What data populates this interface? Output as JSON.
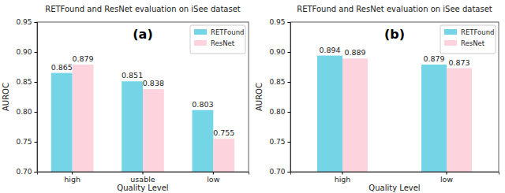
{
  "chart_data": [
    {
      "type": "bar",
      "title": "RETFound and ResNet evaluation on iSee dataset",
      "annotation": "(a)",
      "x_label": "Quality Level",
      "y_label": "AUROC",
      "categories": [
        "high",
        "usable",
        "low"
      ],
      "series": [
        {
          "name": "RETFound",
          "color": "#74d5e6",
          "values": [
            0.865,
            0.851,
            0.803
          ]
        },
        {
          "name": "ResNet",
          "color": "#fdd3dd",
          "values": [
            0.879,
            0.838,
            0.755
          ]
        }
      ],
      "ylim": [
        0.7,
        0.95
      ],
      "yticks": [
        {
          "value": 0.7,
          "label": "0.70"
        },
        {
          "value": 0.75,
          "label": "0.75"
        },
        {
          "value": 0.8,
          "label": "0.80"
        },
        {
          "value": 0.85,
          "label": "0.85"
        },
        {
          "value": 0.9,
          "label": "0.90"
        },
        {
          "value": 0.95,
          "label": "0.95"
        }
      ],
      "legend": "upper right",
      "data_labels": true,
      "grid": false
    },
    {
      "type": "bar",
      "title": "RETFound and ResNet evaluation on iSee dataset",
      "annotation": "(b)",
      "x_label": "Quality Level",
      "y_label": "AUROC",
      "categories": [
        "high",
        "low"
      ],
      "series": [
        {
          "name": "RETFound",
          "color": "#74d5e6",
          "values": [
            0.894,
            0.879
          ]
        },
        {
          "name": "ResNet",
          "color": "#fdd3dd",
          "values": [
            0.889,
            0.873
          ]
        }
      ],
      "ylim": [
        0.7,
        0.95
      ],
      "yticks": [
        {
          "value": 0.7,
          "label": "0.70"
        },
        {
          "value": 0.75,
          "label": "0.75"
        },
        {
          "value": 0.8,
          "label": "0.80"
        },
        {
          "value": 0.85,
          "label": "0.85"
        },
        {
          "value": 0.9,
          "label": "0.90"
        },
        {
          "value": 0.95,
          "label": "0.95"
        }
      ],
      "legend": "upper right",
      "data_labels": true,
      "grid": false
    }
  ]
}
